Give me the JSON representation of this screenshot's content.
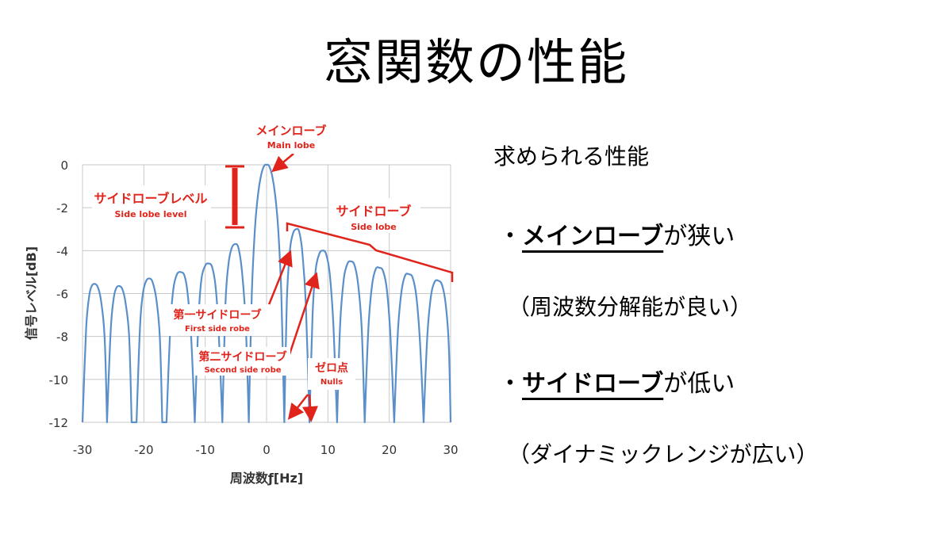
{
  "title": "窓関数の性能",
  "right_panel": {
    "heading": "求められる性能",
    "bullet1_prefix": "・",
    "bullet1_main": "メインローブ",
    "bullet1_suffix": "が狭い",
    "bullet1_note": "（周波数分解能が良い）",
    "bullet2_prefix": "・",
    "bullet2_main": "サイドローブ",
    "bullet2_suffix": "が低い",
    "bullet2_note": "（ダイナミックレンジが広い）"
  },
  "colors": {
    "line": "#5b8fc9",
    "annotation": "#e0241b",
    "grid": "#c8c8c8"
  },
  "chart_data": {
    "type": "line",
    "xlabel": "周波数ƒ[Hz]",
    "ylabel": "信号レベル[dB]",
    "xlim": [
      -30,
      30
    ],
    "ylim": [
      -12,
      0
    ],
    "xticks": [
      "-30",
      "-20",
      "-10",
      "0",
      "10",
      "20",
      "30"
    ],
    "yticks": [
      "0",
      "-2",
      "-4",
      "-6",
      "-8",
      "-10",
      "-12"
    ],
    "grid": true,
    "series": [
      {
        "points": [
          [
            -30.0,
            -12
          ],
          [
            -29.4,
            -7.6
          ],
          [
            -28.9,
            -6.1
          ],
          [
            -28.5,
            -5.65
          ],
          [
            -28.0,
            -5.55
          ],
          [
            -27.5,
            -5.7
          ],
          [
            -27.0,
            -6.3
          ],
          [
            -26.4,
            -8.0
          ],
          [
            -26.0,
            -12
          ],
          [
            -26.0,
            -12
          ],
          [
            -25.4,
            -7.7
          ],
          [
            -24.9,
            -6.2
          ],
          [
            -24.5,
            -5.75
          ],
          [
            -24.0,
            -5.65
          ],
          [
            -23.5,
            -5.8
          ],
          [
            -23.0,
            -6.4
          ],
          [
            -22.4,
            -8.0
          ],
          [
            -22.0,
            -12
          ],
          [
            -21.2,
            -12
          ],
          [
            -20.6,
            -7.4
          ],
          [
            -20.1,
            -5.9
          ],
          [
            -19.6,
            -5.4
          ],
          [
            -19.1,
            -5.3
          ],
          [
            -18.6,
            -5.45
          ],
          [
            -18.0,
            -6.2
          ],
          [
            -17.4,
            -8.0
          ],
          [
            -17.0,
            -12
          ],
          [
            -16.3,
            -12
          ],
          [
            -15.7,
            -7.6
          ],
          [
            -15.2,
            -5.8
          ],
          [
            -14.6,
            -5.1
          ],
          [
            -14.0,
            -5.0
          ],
          [
            -13.4,
            -5.15
          ],
          [
            -12.9,
            -5.9
          ],
          [
            -12.3,
            -8.0
          ],
          [
            -11.7,
            -12
          ],
          [
            -11.7,
            -12
          ],
          [
            -11.1,
            -7.2
          ],
          [
            -10.6,
            -5.3
          ],
          [
            -10.0,
            -4.7
          ],
          [
            -9.5,
            -4.6
          ],
          [
            -8.9,
            -4.75
          ],
          [
            -8.3,
            -5.7
          ],
          [
            -7.8,
            -7.8
          ],
          [
            -7.2,
            -12
          ],
          [
            -7.2,
            -12
          ],
          [
            -6.7,
            -6.5
          ],
          [
            -6.2,
            -4.6
          ],
          [
            -5.7,
            -3.9
          ],
          [
            -5.2,
            -3.7
          ],
          [
            -4.6,
            -3.85
          ],
          [
            -4.0,
            -5.0
          ],
          [
            -3.4,
            -7.4
          ],
          [
            -2.9,
            -12
          ],
          [
            -2.9,
            -12
          ],
          [
            -2.4,
            -6.0
          ],
          [
            -1.9,
            -3.0
          ],
          [
            -1.4,
            -1.4
          ],
          [
            -0.9,
            -0.5
          ],
          [
            -0.4,
            -0.05
          ],
          [
            0.0,
            0.0
          ],
          [
            0.4,
            -0.05
          ],
          [
            0.9,
            -0.5
          ],
          [
            1.4,
            -1.4
          ],
          [
            1.9,
            -3.0
          ],
          [
            2.4,
            -6.0
          ],
          [
            2.9,
            -12
          ],
          [
            2.9,
            -12
          ],
          [
            3.3,
            -6.4
          ],
          [
            3.8,
            -4.0
          ],
          [
            4.3,
            -3.2
          ],
          [
            4.8,
            -3.0
          ],
          [
            5.3,
            -3.1
          ],
          [
            5.8,
            -4.0
          ],
          [
            6.4,
            -6.5
          ],
          [
            7.0,
            -12
          ],
          [
            7.0,
            -12
          ],
          [
            7.5,
            -7.0
          ],
          [
            8.0,
            -4.9
          ],
          [
            8.6,
            -4.15
          ],
          [
            9.1,
            -4.0
          ],
          [
            9.7,
            -4.15
          ],
          [
            10.3,
            -5.1
          ],
          [
            10.9,
            -7.5
          ],
          [
            11.5,
            -12
          ],
          [
            11.5,
            -12
          ],
          [
            12.0,
            -7.4
          ],
          [
            12.6,
            -5.3
          ],
          [
            13.2,
            -4.6
          ],
          [
            13.7,
            -4.5
          ],
          [
            14.3,
            -4.65
          ],
          [
            14.9,
            -5.5
          ],
          [
            15.5,
            -7.6
          ],
          [
            16.0,
            -12
          ],
          [
            16.0,
            -12
          ],
          [
            16.6,
            -7.6
          ],
          [
            17.2,
            -5.6
          ],
          [
            17.8,
            -4.85
          ],
          [
            18.4,
            -4.8
          ],
          [
            19.0,
            -4.95
          ],
          [
            19.6,
            -5.8
          ],
          [
            20.2,
            -8.0
          ],
          [
            20.8,
            -12
          ],
          [
            20.8,
            -12
          ],
          [
            21.4,
            -7.8
          ],
          [
            22.0,
            -5.9
          ],
          [
            22.6,
            -5.15
          ],
          [
            23.2,
            -5.1
          ],
          [
            23.8,
            -5.25
          ],
          [
            24.4,
            -6.1
          ],
          [
            25.0,
            -8.2
          ],
          [
            25.6,
            -12
          ],
          [
            25.6,
            -12
          ],
          [
            26.2,
            -8.0
          ],
          [
            26.8,
            -6.1
          ],
          [
            27.4,
            -5.45
          ],
          [
            28.0,
            -5.4
          ],
          [
            28.6,
            -5.6
          ],
          [
            29.2,
            -6.5
          ],
          [
            29.7,
            -8.4
          ],
          [
            30.0,
            -12
          ]
        ]
      }
    ],
    "annotations": {
      "main_lobe_jp": "メインローブ",
      "main_lobe_en": "Main lobe",
      "side_lobe_level_jp": "サイドローブレベル",
      "side_lobe_level_en": "Side lobe level",
      "side_lobe_jp": "サイドローブ",
      "side_lobe_en": "Side lobe",
      "first_side_jp": "第一サイドローブ",
      "first_side_en": "First side robe",
      "second_side_jp": "第二サイドローブ",
      "second_side_en": "Second side robe",
      "nulls_jp": "ゼロ点",
      "nulls_en": "Nulls"
    }
  }
}
